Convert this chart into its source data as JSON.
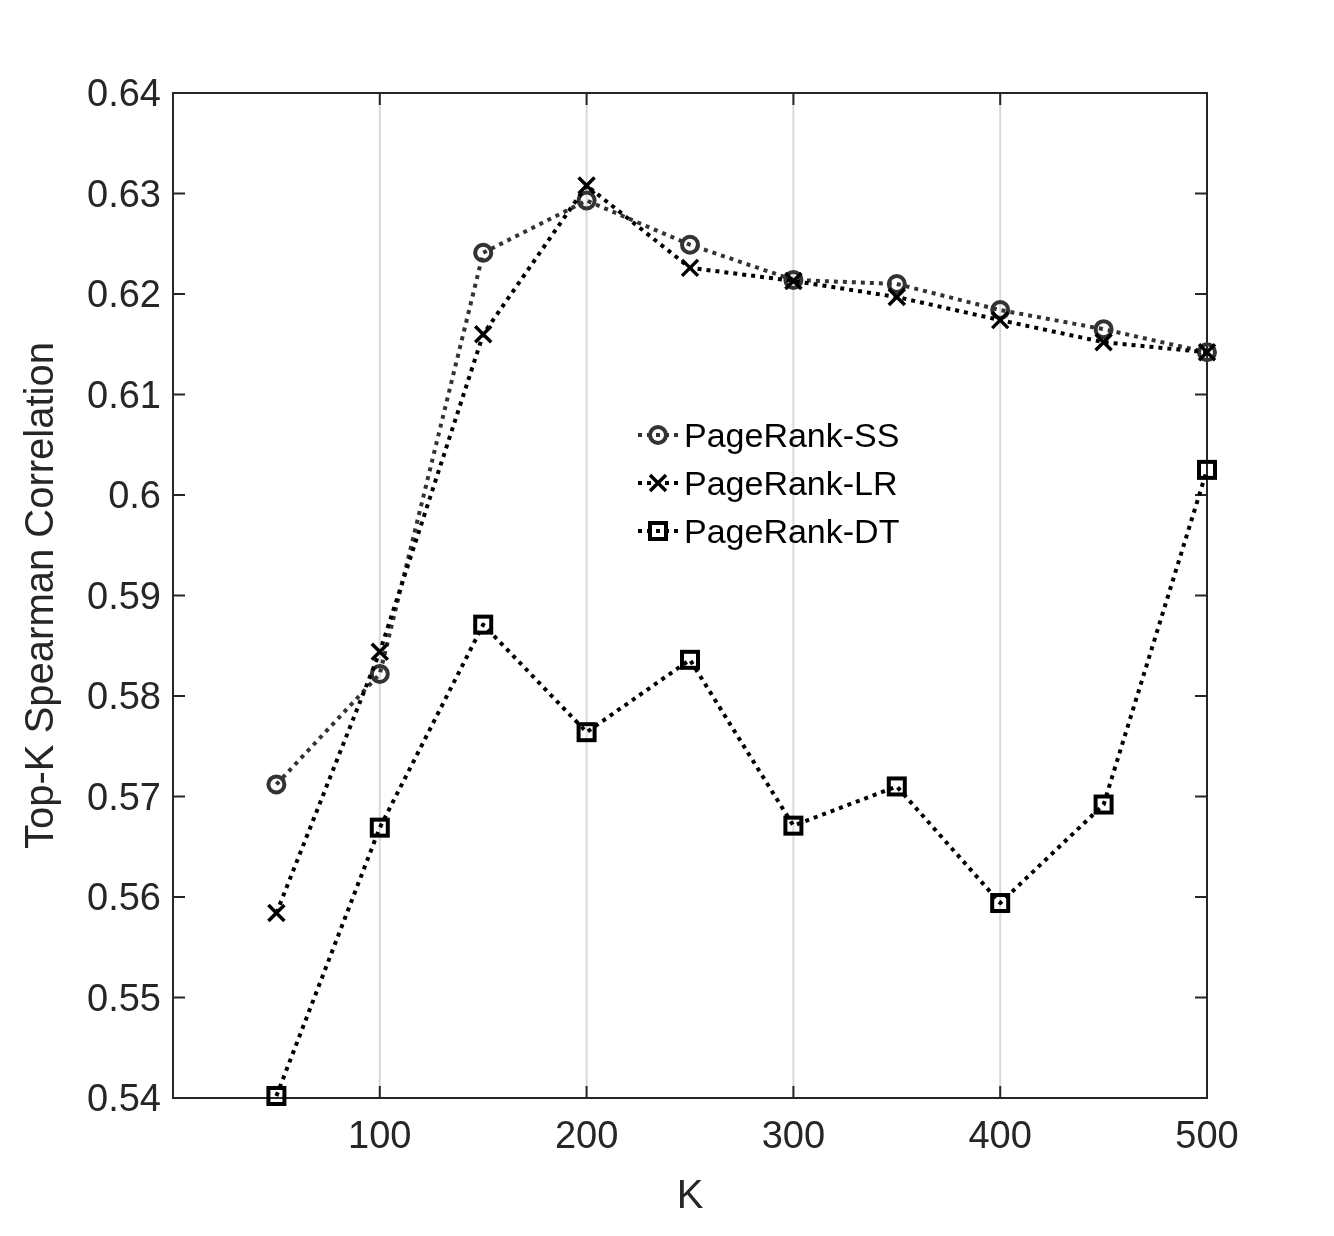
{
  "chart_data": {
    "type": "line",
    "xlabel": "K",
    "ylabel": "Top-K Spearman Correlation",
    "x": [
      50,
      100,
      150,
      200,
      250,
      300,
      350,
      400,
      450,
      500
    ],
    "series": [
      {
        "name": "PageRank-SS",
        "color": "#333333",
        "marker": "circle",
        "values": [
          0.5712,
          0.5822,
          0.6241,
          0.6293,
          0.6249,
          0.6214,
          0.621,
          0.6184,
          0.6165,
          0.6142
        ]
      },
      {
        "name": "PageRank-LR",
        "color": "#000000",
        "marker": "cross",
        "values": [
          0.5584,
          0.5844,
          0.616,
          0.6308,
          0.6226,
          0.6213,
          0.6197,
          0.6174,
          0.6152,
          0.6142
        ]
      },
      {
        "name": "PageRank-DT",
        "color": "#000000",
        "marker": "square",
        "values": [
          0.5402,
          0.5669,
          0.5871,
          0.5764,
          0.5836,
          0.5671,
          0.571,
          0.5594,
          0.5692,
          0.6025
        ]
      }
    ],
    "xlim": [
      0,
      500
    ],
    "xticks": [
      100,
      200,
      300,
      400,
      500
    ],
    "ylim": [
      0.54,
      0.64
    ],
    "yticks": [
      0.54,
      0.55,
      0.56,
      0.57,
      0.58,
      0.59,
      0.6,
      0.61,
      0.62,
      0.63,
      0.64
    ],
    "grid": "x",
    "legend": "top",
    "line_style": "dotted"
  }
}
